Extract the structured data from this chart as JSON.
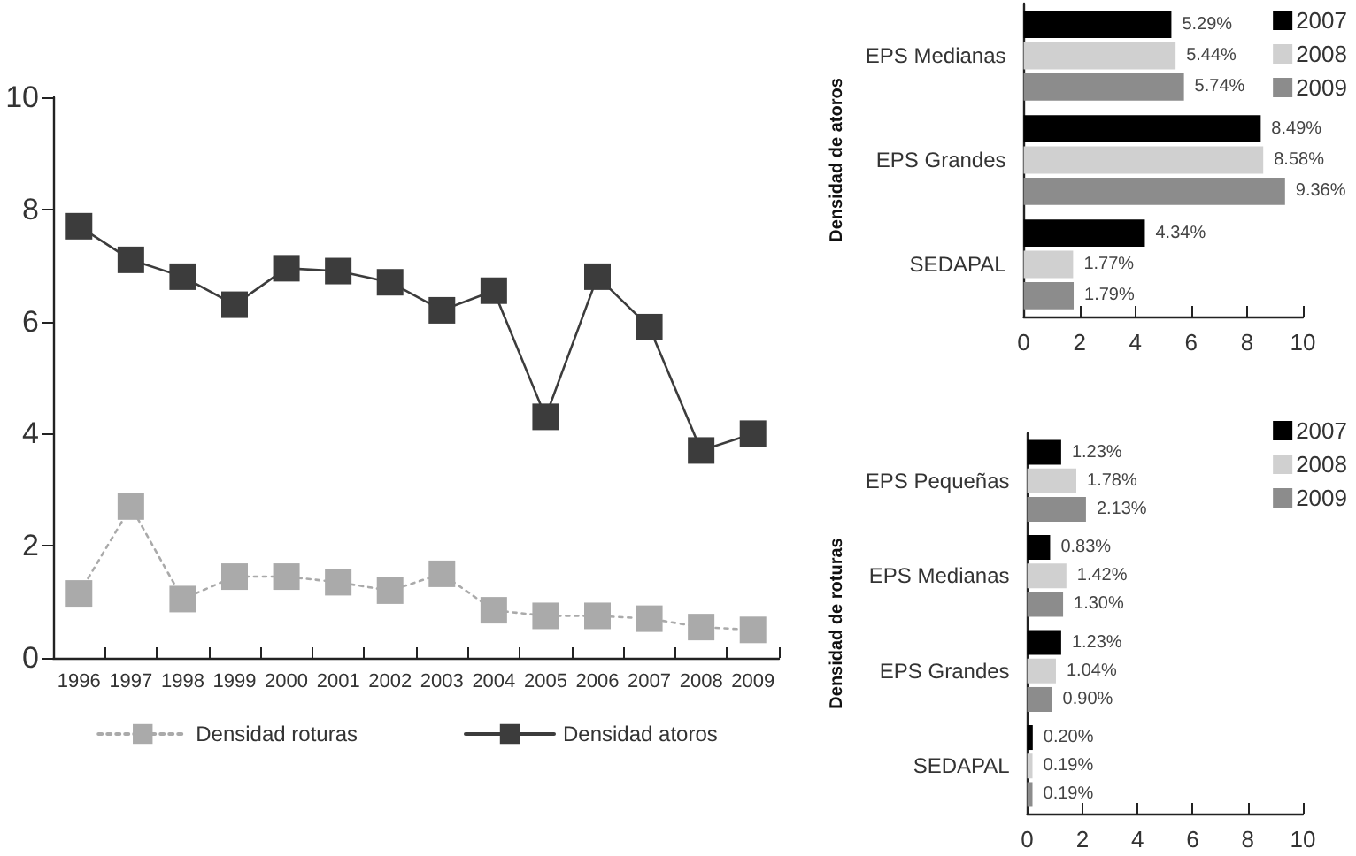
{
  "chart_data": [
    {
      "type": "line",
      "categories": [
        "1996",
        "1997",
        "1998",
        "1999",
        "2000",
        "2001",
        "2002",
        "2003",
        "2004",
        "2005",
        "2006",
        "2007",
        "2008",
        "2009"
      ],
      "series": [
        {
          "name": "Densidad roturas",
          "color": "#aaaaaa",
          "line_style": "dotted",
          "values": [
            1.15,
            2.7,
            1.05,
            1.45,
            1.45,
            1.35,
            1.2,
            1.5,
            0.85,
            0.75,
            0.75,
            0.7,
            0.55,
            0.5
          ]
        },
        {
          "name": "Densidad atoros",
          "color": "#3c3c3c",
          "line_style": "solid",
          "values": [
            7.7,
            7.1,
            6.8,
            6.3,
            6.95,
            6.9,
            6.7,
            6.2,
            6.55,
            4.3,
            6.8,
            5.9,
            3.7,
            4.0
          ]
        }
      ],
      "ylim": [
        0,
        10
      ],
      "yticks": [
        0,
        2,
        4,
        6,
        8,
        10
      ],
      "grid": false,
      "legend": "bottom",
      "marker": "square"
    },
    {
      "type": "bar",
      "orientation": "horizontal",
      "ylabel": "Densidad de atoros",
      "categories": [
        "EPS Medianas",
        "EPS Grandes",
        "SEDAPAL"
      ],
      "series": [
        {
          "name": "2007",
          "color": "#000000",
          "values": [
            5.29,
            8.49,
            4.34
          ],
          "value_labels": [
            "5.29%",
            "8.49%",
            "4.34%"
          ]
        },
        {
          "name": "2008",
          "color": "#d0d0d0",
          "values": [
            5.44,
            8.58,
            1.77
          ],
          "value_labels": [
            "5.44%",
            "8.58%",
            "1.77%"
          ]
        },
        {
          "name": "2009",
          "color": "#8c8c8c",
          "values": [
            5.74,
            9.36,
            1.79
          ],
          "value_labels": [
            "5.74%",
            "9.36%",
            "1.79%"
          ]
        }
      ],
      "xlim": [
        0,
        10
      ],
      "xticks": [
        0,
        2,
        4,
        6,
        8,
        10
      ],
      "legend": "top right"
    },
    {
      "type": "bar",
      "orientation": "horizontal",
      "ylabel": "Densidad de roturas",
      "categories": [
        "EPS Pequeñas",
        "EPS Medianas",
        "EPS Grandes",
        "SEDAPAL"
      ],
      "series": [
        {
          "name": "2007",
          "color": "#000000",
          "values": [
            1.23,
            0.83,
            1.23,
            0.2
          ],
          "value_labels": [
            "1.23%",
            "0.83%",
            "1.23%",
            "0.20%"
          ]
        },
        {
          "name": "2008",
          "color": "#d0d0d0",
          "values": [
            1.78,
            1.42,
            1.04,
            0.19
          ],
          "value_labels": [
            "1.78%",
            "1.42%",
            "1.04%",
            "0.19%"
          ]
        },
        {
          "name": "2009",
          "color": "#8c8c8c",
          "values": [
            2.13,
            1.3,
            0.9,
            0.19
          ],
          "value_labels": [
            "2.13%",
            "1.30%",
            "0.90%",
            "0.19%"
          ]
        }
      ],
      "xlim": [
        0,
        10
      ],
      "xticks": [
        0,
        2,
        4,
        6,
        8,
        10
      ],
      "legend": "top right"
    }
  ]
}
